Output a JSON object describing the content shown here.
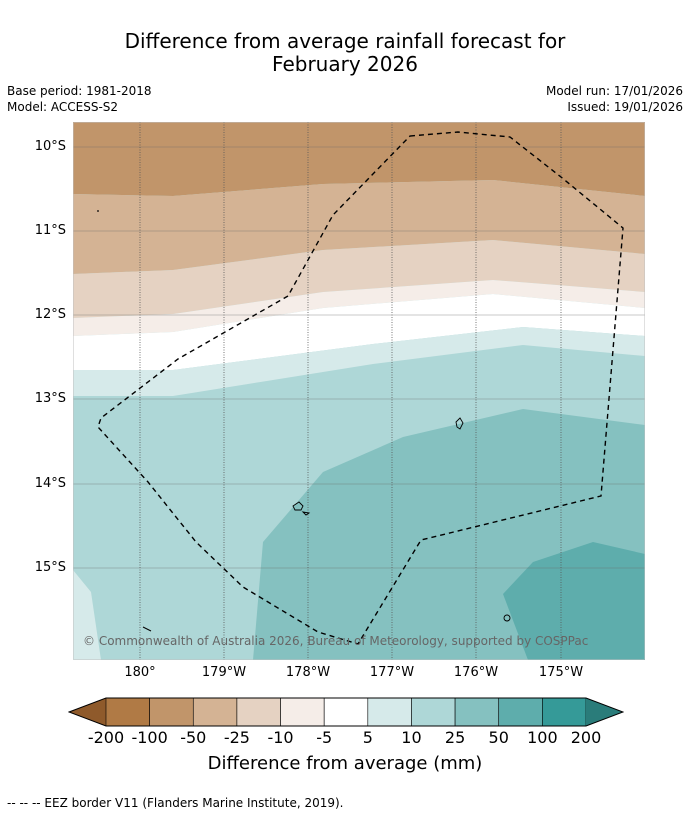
{
  "title": {
    "line1": "Difference from average rainfall forecast for",
    "line2": "February 2026"
  },
  "meta": {
    "base_period": "Base period: 1981-2018",
    "model": "Model: ACCESS-S2",
    "model_run": "Model run: 17/01/2026",
    "issued": "Issued: 19/01/2026"
  },
  "axes": {
    "lat_labels": [
      "10°S",
      "11°S",
      "12°S",
      "13°S",
      "14°S",
      "15°S"
    ],
    "lon_labels": [
      "180°",
      "179°W",
      "178°W",
      "177°W",
      "176°W",
      "175°W"
    ]
  },
  "copyright": "© Commonwealth of Australia 2026, Bureau of Meteorology, supported by COSPPac",
  "colorbar": {
    "ticks": [
      "-200",
      "-100",
      "-50",
      "-25",
      "-10",
      "-5",
      "5",
      "10",
      "25",
      "50",
      "100",
      "200"
    ],
    "colors": [
      "#8f5a2b",
      "#b07a45",
      "#c1956a",
      "#d4b394",
      "#e5d2c2",
      "#f5ede8",
      "#ffffff",
      "#d6eaea",
      "#aed7d7",
      "#85c1c0",
      "#5eadac",
      "#359a98",
      "#2a7c7a"
    ],
    "label": "Difference from average (mm)"
  },
  "footnote": "--  --  -- EEZ border V11 (Flanders Marine Institute, 2019)."
}
